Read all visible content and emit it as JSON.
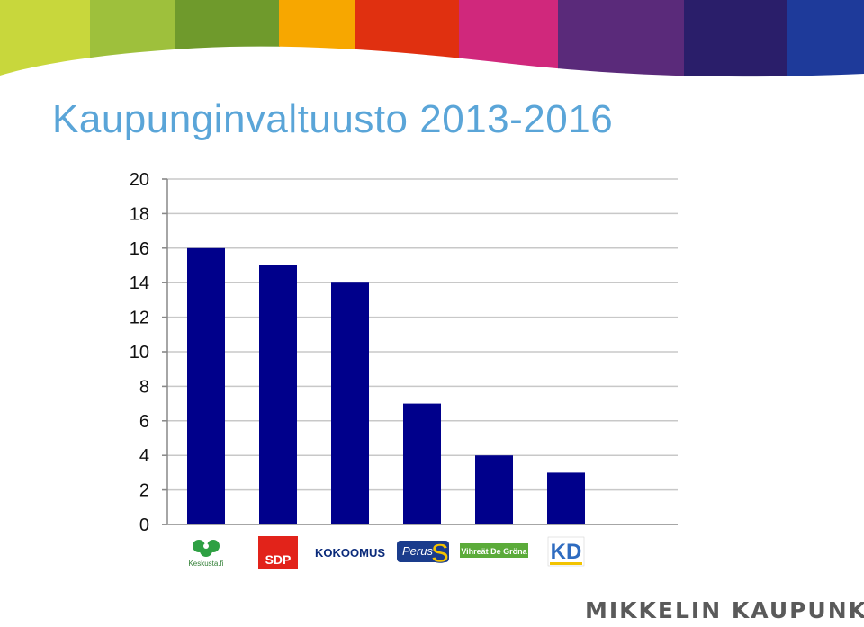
{
  "slide": {
    "title": "Kaupunginvaltuusto 2013-2016",
    "footer_brand": "MIKKELIN KAUPUNKI",
    "banner_colors": [
      "#c8d73c",
      "#9ec03c",
      "#6f9a2c",
      "#f7a700",
      "#e03010",
      "#d0287c",
      "#5a2a7a",
      "#2a1e6a",
      "#1e3a9a"
    ]
  },
  "chart_data": {
    "type": "bar",
    "title": "",
    "xlabel": "",
    "ylabel": "",
    "ylim": [
      0,
      20
    ],
    "yticks": [
      0,
      2,
      4,
      6,
      8,
      10,
      12,
      14,
      16,
      18,
      20
    ],
    "grid": true,
    "legend": "none",
    "bar_color": "#00008b",
    "categories": [
      {
        "logo": "keskusta-logo",
        "label": "Keskusta.fi"
      },
      {
        "logo": "sdp-logo",
        "label": "SDP"
      },
      {
        "logo": "kokoomus-logo",
        "label": "KOKOOMUS"
      },
      {
        "logo": "perussuomalaiset-logo",
        "label": "Perus"
      },
      {
        "logo": "vihreat-logo",
        "label": "Vihreät De Gröna"
      },
      {
        "logo": "kd-logo",
        "label": "KD"
      }
    ],
    "values": [
      16,
      15,
      14,
      7,
      4,
      3
    ]
  }
}
